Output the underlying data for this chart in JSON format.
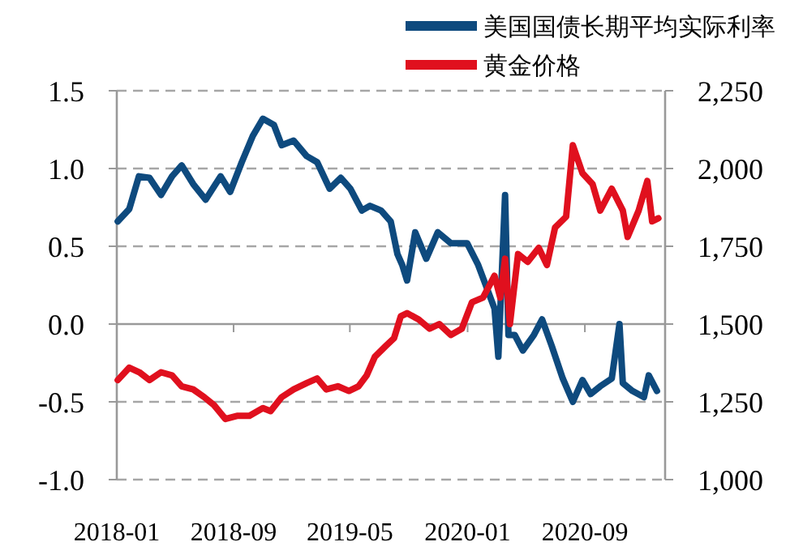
{
  "chart_data": {
    "type": "line",
    "xlim": [
      "2018-01-01",
      "2021-02-15"
    ],
    "xticks": [
      "2018-01",
      "2018-09",
      "2019-05",
      "2020-01",
      "2020-09"
    ],
    "ylim": [
      -1,
      1.5
    ],
    "yticks": [
      {
        "value": -1,
        "label": "-1.0"
      },
      {
        "value": -0.5,
        "label": "-0.5"
      },
      {
        "value": 0,
        "label": "0.0"
      },
      {
        "value": 0.5,
        "label": "0.5"
      },
      {
        "value": 1,
        "label": "1.0"
      },
      {
        "value": 1.5,
        "label": "1.5"
      }
    ],
    "y2lim": [
      1000,
      2250
    ],
    "y2ticks": [
      {
        "value": 1000,
        "label": "1,000"
      },
      {
        "value": 1250,
        "label": "1,250"
      },
      {
        "value": 1500,
        "label": "1,500"
      },
      {
        "value": 1750,
        "label": "1,750"
      },
      {
        "value": 2000,
        "label": "2,000"
      },
      {
        "value": 2250,
        "label": "2,250"
      }
    ],
    "grid": "y",
    "legend": "top",
    "marker": "none",
    "line_style": "solid",
    "series": [
      {
        "name": "美国国债长期平均实际利率",
        "color": "#0e4a7e",
        "x": [
          "2018-01-03",
          "2018-01-27",
          "2018-02-16",
          "2018-03-10",
          "2018-04-03",
          "2018-04-26",
          "2018-05-16",
          "2018-06-09",
          "2018-07-05",
          "2018-08-05",
          "2018-08-25",
          "2018-09-18",
          "2018-10-11",
          "2018-11-01",
          "2018-11-24",
          "2018-12-10",
          "2019-01-04",
          "2019-01-31",
          "2019-02-22",
          "2019-03-20",
          "2019-04-12",
          "2019-05-02",
          "2019-05-26",
          "2019-06-12",
          "2019-07-05",
          "2019-07-25",
          "2019-08-08",
          "2019-08-18",
          "2019-08-28",
          "2019-09-14",
          "2019-10-07",
          "2019-10-31",
          "2019-11-27",
          "2019-12-31",
          "2020-01-23",
          "2020-02-09",
          "2020-02-26",
          "2020-03-05",
          "2020-03-19",
          "2020-03-26",
          "2020-04-08",
          "2020-04-25",
          "2020-05-18",
          "2020-06-04",
          "2020-06-24",
          "2020-07-17",
          "2020-08-07",
          "2020-08-27",
          "2020-09-13",
          "2020-10-03",
          "2020-10-27",
          "2020-11-12",
          "2020-11-19",
          "2020-12-09",
          "2021-01-02",
          "2021-01-12",
          "2021-01-29"
        ],
        "values": [
          0.66,
          0.74,
          0.95,
          0.94,
          0.83,
          0.95,
          1.02,
          0.9,
          0.8,
          0.95,
          0.85,
          1.04,
          1.21,
          1.32,
          1.28,
          1.15,
          1.18,
          1.08,
          1.04,
          0.87,
          0.94,
          0.87,
          0.73,
          0.76,
          0.73,
          0.66,
          0.45,
          0.38,
          0.28,
          0.59,
          0.42,
          0.59,
          0.52,
          0.52,
          0.38,
          0.24,
          0.1,
          -0.21,
          0.83,
          -0.07,
          -0.07,
          -0.17,
          -0.07,
          0.03,
          -0.14,
          -0.35,
          -0.5,
          -0.36,
          -0.45,
          -0.4,
          -0.35,
          0.0,
          -0.38,
          -0.43,
          -0.47,
          -0.33,
          -0.43
        ]
      },
      {
        "name": "黄金价格",
        "color": "#e0101e",
        "axis": "y2",
        "x": [
          "2018-01-03",
          "2018-01-27",
          "2018-02-17",
          "2018-03-10",
          "2018-04-03",
          "2018-04-26",
          "2018-05-16",
          "2018-06-09",
          "2018-07-02",
          "2018-07-22",
          "2018-08-15",
          "2018-09-08",
          "2018-10-04",
          "2018-11-01",
          "2018-11-17",
          "2018-12-10",
          "2019-01-04",
          "2019-01-31",
          "2019-02-22",
          "2019-03-13",
          "2019-04-06",
          "2019-04-29",
          "2019-05-19",
          "2019-06-05",
          "2019-06-22",
          "2019-07-15",
          "2019-08-01",
          "2019-08-15",
          "2019-08-28",
          "2019-09-21",
          "2019-10-14",
          "2019-11-03",
          "2019-11-27",
          "2019-12-20",
          "2020-01-10",
          "2020-02-02",
          "2020-02-26",
          "2020-03-09",
          "2020-03-19",
          "2020-03-29",
          "2020-04-15",
          "2020-05-05",
          "2020-05-28",
          "2020-06-14",
          "2020-07-01",
          "2020-07-24",
          "2020-08-07",
          "2020-08-27",
          "2020-09-17",
          "2020-10-03",
          "2020-10-27",
          "2020-11-19",
          "2020-11-29",
          "2020-12-22",
          "2021-01-09",
          "2021-01-19",
          "2021-02-01"
        ],
        "values": [
          1320,
          1360,
          1345,
          1320,
          1345,
          1335,
          1300,
          1290,
          1265,
          1240,
          1195,
          1205,
          1205,
          1230,
          1220,
          1265,
          1290,
          1310,
          1325,
          1290,
          1300,
          1285,
          1300,
          1335,
          1395,
          1430,
          1455,
          1525,
          1535,
          1515,
          1485,
          1500,
          1465,
          1485,
          1570,
          1585,
          1655,
          1585,
          1710,
          1500,
          1725,
          1700,
          1745,
          1690,
          1810,
          1845,
          2075,
          1985,
          1950,
          1865,
          1935,
          1865,
          1780,
          1865,
          1960,
          1830,
          1840
        ]
      }
    ]
  }
}
